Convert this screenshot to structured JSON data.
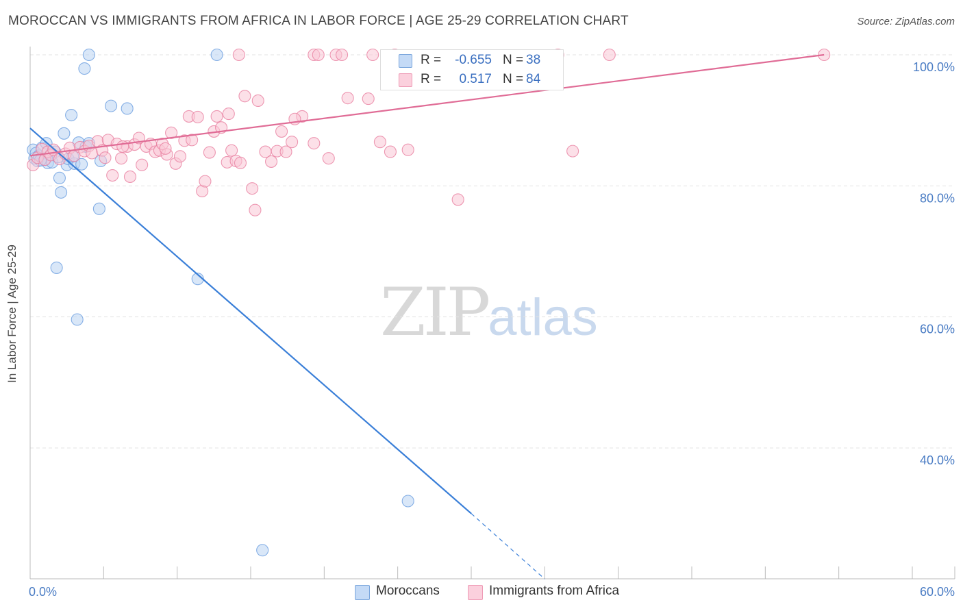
{
  "header": {
    "title": "MOROCCAN VS IMMIGRANTS FROM AFRICA IN LABOR FORCE | AGE 25-29 CORRELATION CHART",
    "source": "Source: ZipAtlas.com"
  },
  "watermark": {
    "zip": "ZIP",
    "atlas": "atlas"
  },
  "legend": {
    "moroccans": {
      "r_label": "R =",
      "r_value": "-0.655",
      "n_label": "N =",
      "n_value": "38",
      "color": "#a8c8f0"
    },
    "africa": {
      "r_label": "R =",
      "r_value": "0.517",
      "n_label": "N =",
      "n_value": "84",
      "color": "#f7b8cc"
    }
  },
  "bottom_legend": {
    "moroccans_label": "Moroccans",
    "africa_label": "Immigrants from Africa"
  },
  "chart_data": {
    "type": "scatter",
    "title": "MOROCCAN VS IMMIGRANTS FROM AFRICA IN LABOR FORCE | AGE 25-29 CORRELATION CHART",
    "xlabel": "",
    "ylabel": "In Labor Force | Age 25-29",
    "xlim": [
      0,
      60
    ],
    "ylim": [
      20,
      102
    ],
    "x_tick_labels": [
      "0.0%",
      "60.0%"
    ],
    "y_ticks": [
      40,
      60,
      80,
      100
    ],
    "y_tick_labels": [
      "40.0%",
      "60.0%",
      "80.0%",
      "100.0%"
    ],
    "grid": "horizontal dashed",
    "legend_placement": "top-center",
    "series": [
      {
        "name": "Moroccans",
        "color": "#6a9ee0",
        "fill": "#b9d3f3",
        "points": [
          [
            0.2,
            85.5
          ],
          [
            0.3,
            84.2
          ],
          [
            0.4,
            85.0
          ],
          [
            0.5,
            83.8
          ],
          [
            0.6,
            84.6
          ],
          [
            0.8,
            85.8
          ],
          [
            1.0,
            84.0
          ],
          [
            1.1,
            86.5
          ],
          [
            1.2,
            83.5
          ],
          [
            1.4,
            84.8
          ],
          [
            1.5,
            83.6
          ],
          [
            1.7,
            85.2
          ],
          [
            1.9,
            84.4
          ],
          [
            2.0,
            81.2
          ],
          [
            2.1,
            79.0
          ],
          [
            2.3,
            88.0
          ],
          [
            2.5,
            83.2
          ],
          [
            2.6,
            84.1
          ],
          [
            2.8,
            90.8
          ],
          [
            3.0,
            83.4
          ],
          [
            3.3,
            86.6
          ],
          [
            3.5,
            83.3
          ],
          [
            3.8,
            86.0
          ],
          [
            4.0,
            86.5
          ],
          [
            3.7,
            97.9
          ],
          [
            4.0,
            100.0
          ],
          [
            1.8,
            67.5
          ],
          [
            3.2,
            59.6
          ],
          [
            4.7,
            76.5
          ],
          [
            4.8,
            83.8
          ],
          [
            5.5,
            92.2
          ],
          [
            6.6,
            91.8
          ],
          [
            11.4,
            65.8
          ],
          [
            12.7,
            100.0
          ],
          [
            15.8,
            24.4
          ],
          [
            25.7,
            31.9
          ],
          [
            0.7,
            83.9
          ],
          [
            2.9,
            84.5
          ]
        ]
      },
      {
        "name": "Immigrants from Africa",
        "color": "#e87fa0",
        "fill": "#f9c6d6",
        "points": [
          [
            0.2,
            83.2
          ],
          [
            0.5,
            84.3
          ],
          [
            0.8,
            85.6
          ],
          [
            1.0,
            84.0
          ],
          [
            1.2,
            85.2
          ],
          [
            1.4,
            84.7
          ],
          [
            1.6,
            85.5
          ],
          [
            2.0,
            84.1
          ],
          [
            2.4,
            84.9
          ],
          [
            2.7,
            85.8
          ],
          [
            3.0,
            84.6
          ],
          [
            3.4,
            85.9
          ],
          [
            3.7,
            85.3
          ],
          [
            4.0,
            86.1
          ],
          [
            4.2,
            85.0
          ],
          [
            4.6,
            86.8
          ],
          [
            4.9,
            85.4
          ],
          [
            5.1,
            84.3
          ],
          [
            5.3,
            87.0
          ],
          [
            5.6,
            81.6
          ],
          [
            5.9,
            86.4
          ],
          [
            6.2,
            84.2
          ],
          [
            6.6,
            86.0
          ],
          [
            6.8,
            81.4
          ],
          [
            7.1,
            86.3
          ],
          [
            7.4,
            87.3
          ],
          [
            7.6,
            83.2
          ],
          [
            7.9,
            86.0
          ],
          [
            8.2,
            86.4
          ],
          [
            8.5,
            85.2
          ],
          [
            8.8,
            85.4
          ],
          [
            9.0,
            86.4
          ],
          [
            9.3,
            84.8
          ],
          [
            9.6,
            88.1
          ],
          [
            9.9,
            83.4
          ],
          [
            10.2,
            84.5
          ],
          [
            10.5,
            86.9
          ],
          [
            10.8,
            90.6
          ],
          [
            11.0,
            87.0
          ],
          [
            11.4,
            90.5
          ],
          [
            11.7,
            79.2
          ],
          [
            11.9,
            80.7
          ],
          [
            12.2,
            85.1
          ],
          [
            12.5,
            88.3
          ],
          [
            12.7,
            90.6
          ],
          [
            13.0,
            88.9
          ],
          [
            13.4,
            83.6
          ],
          [
            13.7,
            85.4
          ],
          [
            14.0,
            83.8
          ],
          [
            14.3,
            83.5
          ],
          [
            14.6,
            93.7
          ],
          [
            15.1,
            79.6
          ],
          [
            15.3,
            76.3
          ],
          [
            15.5,
            93.0
          ],
          [
            16.0,
            85.2
          ],
          [
            16.4,
            83.7
          ],
          [
            16.8,
            85.3
          ],
          [
            17.1,
            88.3
          ],
          [
            17.4,
            85.2
          ],
          [
            17.8,
            86.7
          ],
          [
            18.5,
            90.6
          ],
          [
            18.0,
            90.2
          ],
          [
            19.3,
            86.5
          ],
          [
            20.3,
            84.2
          ],
          [
            21.6,
            93.4
          ],
          [
            23.0,
            93.3
          ],
          [
            23.8,
            86.7
          ],
          [
            24.5,
            85.2
          ],
          [
            25.7,
            85.5
          ],
          [
            29.1,
            77.9
          ],
          [
            36.9,
            85.3
          ],
          [
            14.2,
            100.0
          ],
          [
            19.3,
            100.0
          ],
          [
            19.6,
            100.0
          ],
          [
            20.8,
            100.0
          ],
          [
            21.2,
            100.0
          ],
          [
            23.3,
            100.0
          ],
          [
            24.8,
            100.0
          ],
          [
            35.9,
            100.0
          ],
          [
            39.4,
            100.0
          ],
          [
            54.0,
            100.0
          ],
          [
            13.5,
            91.0
          ],
          [
            6.3,
            86.0
          ],
          [
            9.2,
            85.7
          ]
        ]
      }
    ],
    "trend_lines": [
      {
        "series": "Moroccans",
        "solid": [
          [
            0,
            88.8
          ],
          [
            30,
            30.0
          ]
        ],
        "dashed": [
          [
            30,
            30.0
          ],
          [
            35,
            20.0
          ]
        ]
      },
      {
        "series": "Immigrants from Africa",
        "solid": [
          [
            0,
            84.6
          ],
          [
            54,
            100.0
          ]
        ]
      }
    ]
  }
}
